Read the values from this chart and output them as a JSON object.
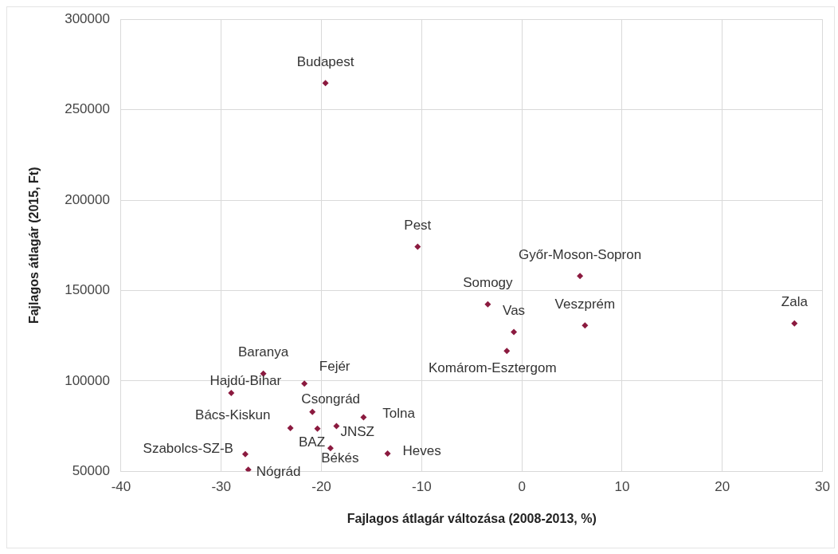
{
  "chart_data": {
    "type": "scatter",
    "xlabel": "Fajlagos átlagár változása (2008-2013, %)",
    "ylabel": "Fajlagos átlagár (2015, Ft)",
    "xlim": [
      -40,
      30
    ],
    "xticks": [
      -40,
      -30,
      -20,
      -10,
      0,
      10,
      20,
      30
    ],
    "ylim": [
      50000,
      300000
    ],
    "yticks": [
      50000,
      100000,
      150000,
      200000,
      250000,
      300000
    ],
    "grid": true,
    "marker": "diamond",
    "legend": false,
    "series": [
      {
        "color": "#8b1a3f",
        "x": [
          -19.6,
          -10.4,
          5.8,
          -3.4,
          -0.8,
          6.3,
          27.2,
          -1.5,
          -25.8,
          -29.0,
          -21.7,
          -20.9,
          -23.1,
          -20.4,
          -18.5,
          -15.8,
          -19.1,
          -13.4,
          -27.6,
          -27.3
        ],
        "values": [
          264700,
          174200,
          158000,
          142400,
          127100,
          130700,
          131800,
          116600,
          104100,
          93400,
          98600,
          82900,
          74000,
          73700,
          75100,
          79900,
          62800,
          59900,
          59500,
          50900
        ]
      }
    ],
    "annotations": [
      {
        "text": "Budapest",
        "x": -19.6,
        "y": 264700
      },
      {
        "text": "Pest",
        "x": -10.4,
        "y": 174200
      },
      {
        "text": "Győr-Moson-Sopron",
        "x": 5.8,
        "y": 158000
      },
      {
        "text": "Somogy",
        "x": -3.4,
        "y": 142400
      },
      {
        "text": "Vas",
        "x": -0.8,
        "y": 127100
      },
      {
        "text": "Veszprém",
        "x": 6.3,
        "y": 130700
      },
      {
        "text": "Zala",
        "x": 27.2,
        "y": 131800
      },
      {
        "text": "Komárom-Esztergom",
        "x": -1.5,
        "y": 116600
      },
      {
        "text": "Baranya",
        "x": -25.8,
        "y": 104100
      },
      {
        "text": "Hajdú-Bihar",
        "x": -29.0,
        "y": 93400
      },
      {
        "text": "Fejér",
        "x": -21.7,
        "y": 98600
      },
      {
        "text": "Csongrád",
        "x": -20.9,
        "y": 82900
      },
      {
        "text": "Bács-Kiskun",
        "x": -23.1,
        "y": 74000
      },
      {
        "text": "BAZ",
        "x": -20.4,
        "y": 73700
      },
      {
        "text": "JNSZ",
        "x": -18.5,
        "y": 75100
      },
      {
        "text": "Tolna",
        "x": -15.8,
        "y": 79900
      },
      {
        "text": "Békés",
        "x": -19.1,
        "y": 62800
      },
      {
        "text": "Heves",
        "x": -13.4,
        "y": 59900
      },
      {
        "text": "Szabolcs-SZ-B",
        "x": -27.6,
        "y": 59500
      },
      {
        "text": "Nógrád",
        "x": -27.3,
        "y": 50900
      }
    ]
  }
}
